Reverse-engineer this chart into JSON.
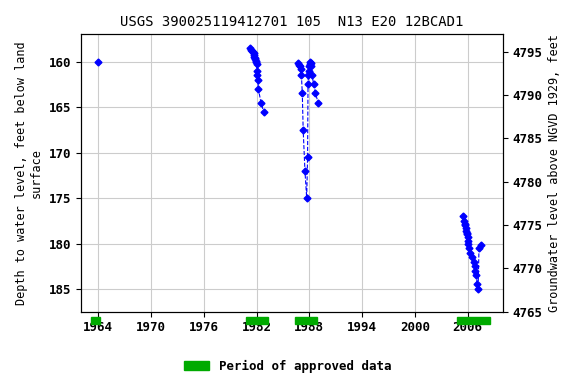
{
  "title": "USGS 390025119412701 105  N13 E20 12BCAD1",
  "ylabel_left": "Depth to water level, feet below land\nsurface",
  "ylabel_right": "Groundwater level above NGVD 1929, feet",
  "xlim": [
    1962,
    2010
  ],
  "ylim_left": [
    187.5,
    157.0
  ],
  "ylim_right": [
    4765,
    4797
  ],
  "xticks": [
    1964,
    1970,
    1976,
    1982,
    1988,
    1994,
    2000,
    2006
  ],
  "yticks_left": [
    160,
    165,
    170,
    175,
    180,
    185
  ],
  "yticks_right": [
    4765,
    4770,
    4775,
    4780,
    4785,
    4790,
    4795
  ],
  "background_color": "#ffffff",
  "plot_bg_color": "#ffffff",
  "grid_color": "#cccccc",
  "data_color": "#0000ff",
  "marker": "D",
  "markersize": 3.5,
  "linestyle": "--",
  "linewidth": 0.8,
  "data_segments": [
    {
      "x": [
        1964.0
      ],
      "y": [
        160.0
      ]
    },
    {
      "x": [
        1981.3,
        1981.4,
        1981.5,
        1981.6,
        1981.65,
        1981.7,
        1981.75,
        1981.8,
        1981.85,
        1981.9,
        1981.95,
        1982.0,
        1982.05,
        1982.1,
        1982.15,
        1982.2,
        1982.5,
        1982.8
      ],
      "y": [
        158.5,
        158.7,
        158.8,
        158.9,
        159.1,
        159.3,
        159.5,
        159.6,
        159.7,
        159.9,
        160.0,
        160.3,
        161.0,
        161.5,
        162.0,
        163.0,
        164.5,
        165.5
      ]
    },
    {
      "x": [
        1986.7,
        1986.8,
        1986.9,
        1987.0,
        1987.1,
        1987.2,
        1987.3,
        1987.5,
        1987.7,
        1987.8,
        1987.85,
        1987.9,
        1987.95,
        1988.0,
        1988.05,
        1988.1,
        1988.15,
        1988.2,
        1988.3,
        1988.5,
        1988.7,
        1989.0
      ],
      "y": [
        160.2,
        160.4,
        160.5,
        160.8,
        161.5,
        163.5,
        167.5,
        172.0,
        175.0,
        170.5,
        162.5,
        161.5,
        161.0,
        160.5,
        160.3,
        160.0,
        160.2,
        160.5,
        161.5,
        162.5,
        163.5,
        164.5
      ]
    },
    {
      "x": [
        2005.5,
        2005.6,
        2005.7,
        2005.75,
        2005.8,
        2005.85,
        2005.9,
        2005.95,
        2006.0,
        2006.05,
        2006.1,
        2006.2,
        2006.3,
        2006.5,
        2006.7,
        2006.8,
        2006.9,
        2007.0,
        2007.1,
        2007.2,
        2007.3,
        2007.5
      ],
      "y": [
        177.0,
        177.5,
        177.8,
        178.0,
        178.3,
        178.6,
        178.8,
        179.0,
        179.3,
        179.7,
        180.0,
        180.5,
        181.0,
        181.5,
        182.0,
        182.5,
        183.0,
        183.5,
        184.5,
        185.0,
        180.5,
        180.2
      ]
    }
  ],
  "approved_periods": [
    {
      "xstart": 1963.2,
      "xend": 1964.2
    },
    {
      "xstart": 1980.8,
      "xend": 1983.3
    },
    {
      "xstart": 1986.4,
      "xend": 1988.9
    },
    {
      "xstart": 2004.8,
      "xend": 2008.5
    }
  ],
  "approved_color": "#00aa00",
  "legend_label": "Period of approved data",
  "title_fontsize": 10,
  "axis_label_fontsize": 8.5,
  "tick_fontsize": 9
}
